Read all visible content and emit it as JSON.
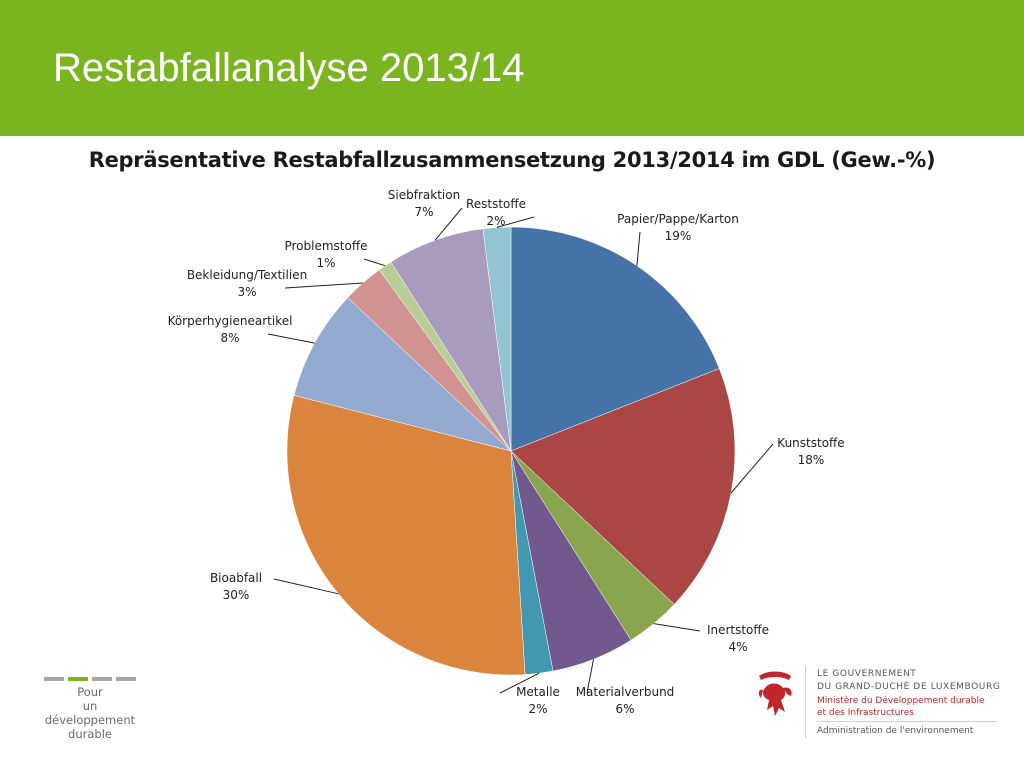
{
  "header": {
    "title": "Restabfallanalyse 2013/14"
  },
  "chart_data": {
    "type": "pie",
    "title": "Repräsentative Restabfallzusammensetzung 2013/2014 im GDL (Gew.-%)",
    "start_angle": "top",
    "direction": "clockwise",
    "slices": [
      {
        "label": "Papier/Pappe/Karton",
        "value": 19,
        "value_label": "19%",
        "color": "#4572a7"
      },
      {
        "label": "Kunststoffe",
        "value": 18,
        "value_label": "18%",
        "color": "#aa4643"
      },
      {
        "label": "Inertstoffe",
        "value": 4,
        "value_label": "4%",
        "color": "#89a54e"
      },
      {
        "label": "Materialverbund",
        "value": 6,
        "value_label": "6%",
        "color": "#71588f"
      },
      {
        "label": "Metalle",
        "value": 2,
        "value_label": "2%",
        "color": "#4198af"
      },
      {
        "label": "Bioabfall",
        "value": 30,
        "value_label": "30%",
        "color": "#db843d"
      },
      {
        "label": "Körperhygieneartikel",
        "value": 8,
        "value_label": "8%",
        "color": "#93a9cf"
      },
      {
        "label": "Bekleidung/Textilien",
        "value": 3,
        "value_label": "3%",
        "color": "#d19392"
      },
      {
        "label": "Problemstoffe",
        "value": 1,
        "value_label": "1%",
        "color": "#b9cd96"
      },
      {
        "label": "Siebfraktion",
        "value": 7,
        "value_label": "7%",
        "color": "#a99bbd"
      },
      {
        "label": "Reststoffe",
        "value": 2,
        "value_label": "2%",
        "color": "#92c4d4"
      }
    ]
  },
  "footer": {
    "left_line1": "Pour",
    "left_line2": "un développement",
    "left_line3": "durable",
    "gov_line1": "LE GOUVERNEMENT",
    "gov_line2": "DU GRAND-DUCHÉ DE LUXEMBOURG",
    "ministry_line1": "Ministère du Développement durable",
    "ministry_line2": "et des Infrastructures",
    "admin": "Administration de l'environnement"
  }
}
